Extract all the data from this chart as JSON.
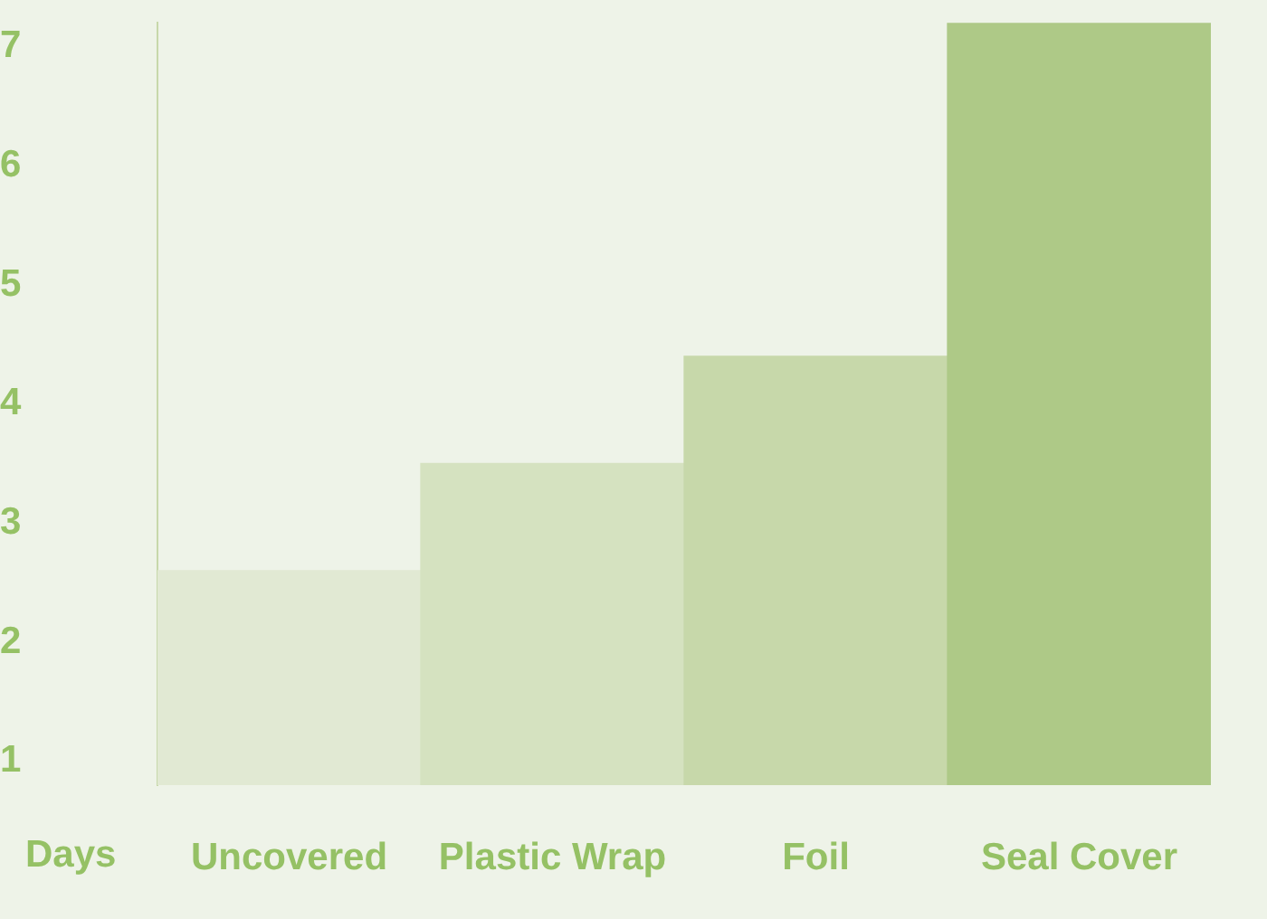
{
  "chart_data": {
    "type": "bar",
    "xlabel": "Days",
    "categories": [
      "Uncovered",
      "Plastic Wrap",
      "Foil",
      "Seal Cover"
    ],
    "values": [
      2.6,
      3.5,
      4.4,
      7.2
    ],
    "colors": [
      "#e1e9d3",
      "#d5e2c0",
      "#c7d8aa",
      "#aec987"
    ],
    "ylim": [
      0.8,
      7.2
    ],
    "yticks": [
      1,
      2,
      3,
      4,
      5,
      6,
      7
    ],
    "grid": false,
    "legend": false
  }
}
